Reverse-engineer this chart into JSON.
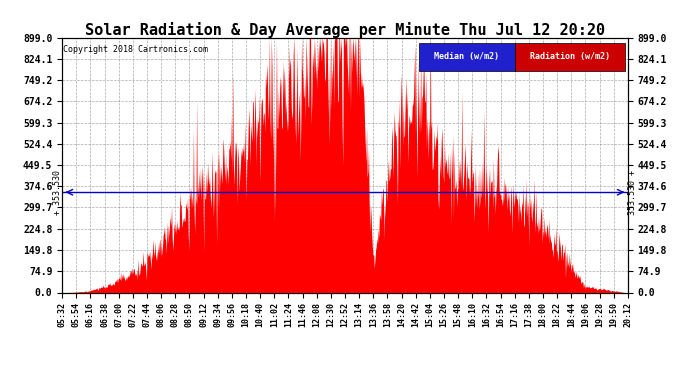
{
  "title": "Solar Radiation & Day Average per Minute Thu Jul 12 20:20",
  "copyright": "Copyright 2018 Cartronics.com",
  "yticks": [
    0.0,
    74.9,
    149.8,
    224.8,
    299.7,
    374.6,
    449.5,
    524.4,
    599.3,
    674.2,
    749.2,
    824.1,
    899.0
  ],
  "ymax": 899.0,
  "ymin": 0.0,
  "median_value": 353.53,
  "median_label": "353.530",
  "bg_color": "#ffffff",
  "plot_bg_color": "#ffffff",
  "grid_color": "#888888",
  "fill_color": "#ff0000",
  "median_color": "#0000cc",
  "title_fontsize": 11,
  "legend_median_color": "#2020cc",
  "legend_radiation_color": "#cc0000",
  "xtick_labels": [
    "05:32",
    "05:54",
    "06:16",
    "06:38",
    "07:00",
    "07:22",
    "07:44",
    "08:06",
    "08:28",
    "08:50",
    "09:12",
    "09:34",
    "09:56",
    "10:18",
    "10:40",
    "11:02",
    "11:24",
    "11:46",
    "12:08",
    "12:30",
    "12:52",
    "13:14",
    "13:36",
    "13:58",
    "14:20",
    "14:42",
    "15:04",
    "15:26",
    "15:48",
    "16:10",
    "16:32",
    "16:54",
    "17:16",
    "17:38",
    "18:00",
    "18:22",
    "18:44",
    "19:06",
    "19:28",
    "19:50",
    "20:12"
  ],
  "num_points": 880
}
